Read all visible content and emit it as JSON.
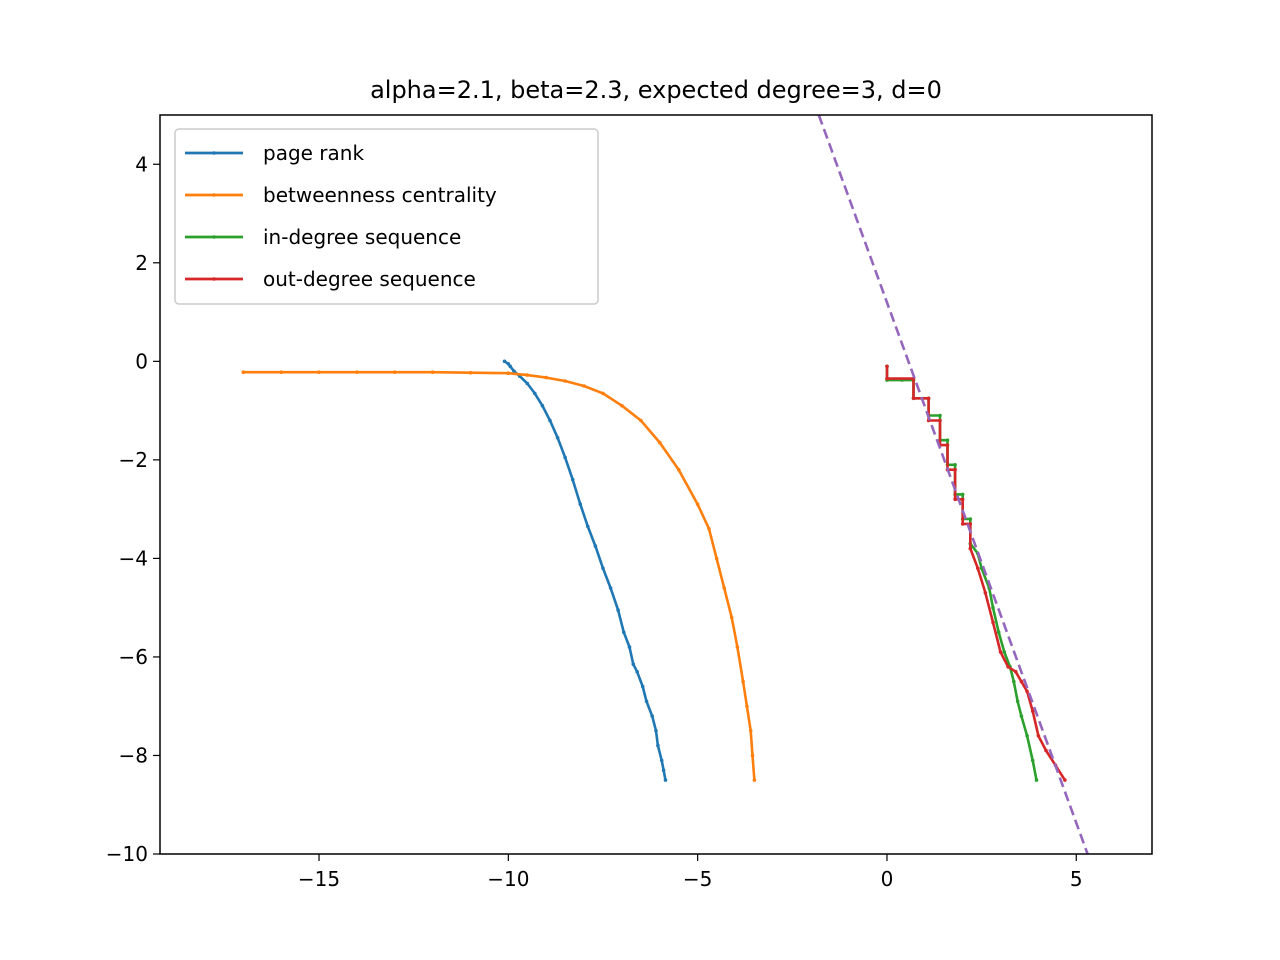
{
  "chart_data": {
    "type": "line",
    "title": "alpha=2.1, beta=2.3, expected degree=3, d=0",
    "xlabel": "",
    "ylabel": "",
    "xlim": [
      -19.2,
      7.0
    ],
    "ylim": [
      -10,
      5
    ],
    "xticks": [
      -15,
      -10,
      -5,
      0,
      5
    ],
    "yticks": [
      4,
      2,
      0,
      -2,
      -4,
      -6,
      -8,
      -10
    ],
    "xtick_labels": [
      "−15",
      "−10",
      "−5",
      "0",
      "5"
    ],
    "ytick_labels": [
      "4",
      "2",
      "0",
      "−2",
      "−4",
      "−6",
      "−8",
      "−10"
    ],
    "grid": false,
    "legend_position": "upper left",
    "series": [
      {
        "name": "page rank",
        "color": "#1f77b4",
        "style": "solid",
        "x": [
          -10.1,
          -10.0,
          -9.95,
          -9.85,
          -9.7,
          -9.5,
          -9.3,
          -9.1,
          -8.9,
          -8.7,
          -8.5,
          -8.3,
          -8.1,
          -7.9,
          -7.7,
          -7.5,
          -7.3,
          -7.1,
          -6.95,
          -6.8,
          -6.7,
          -6.6,
          -6.45,
          -6.35,
          -6.2,
          -6.1,
          -6.05,
          -5.95,
          -5.9,
          -5.85
        ],
        "y": [
          0.0,
          -0.05,
          -0.1,
          -0.2,
          -0.3,
          -0.45,
          -0.65,
          -0.9,
          -1.2,
          -1.55,
          -1.95,
          -2.4,
          -2.9,
          -3.35,
          -3.75,
          -4.2,
          -4.6,
          -5.05,
          -5.5,
          -5.8,
          -6.15,
          -6.3,
          -6.6,
          -6.9,
          -7.2,
          -7.5,
          -7.8,
          -8.1,
          -8.3,
          -8.5
        ]
      },
      {
        "name": "betweenness centrality",
        "color": "#ff7f0e",
        "style": "solid",
        "x": [
          -17.0,
          -16.0,
          -15.0,
          -14.0,
          -13.0,
          -12.0,
          -11.0,
          -10.0,
          -9.5,
          -9.0,
          -8.5,
          -8.0,
          -7.5,
          -7.0,
          -6.5,
          -6.0,
          -5.5,
          -5.0,
          -4.7,
          -4.5,
          -4.3,
          -4.1,
          -3.95,
          -3.8,
          -3.7,
          -3.6,
          -3.55,
          -3.5
        ],
        "y": [
          -0.22,
          -0.22,
          -0.22,
          -0.22,
          -0.22,
          -0.22,
          -0.23,
          -0.24,
          -0.28,
          -0.33,
          -0.4,
          -0.5,
          -0.65,
          -0.9,
          -1.2,
          -1.65,
          -2.2,
          -2.9,
          -3.4,
          -4.0,
          -4.6,
          -5.2,
          -5.8,
          -6.5,
          -7.0,
          -7.5,
          -8.0,
          -8.5
        ]
      },
      {
        "name": "in-degree sequence",
        "color": "#2ca02c",
        "style": "solid",
        "x": [
          0.0,
          0.0,
          0.4,
          0.7,
          0.7,
          1.1,
          1.1,
          1.4,
          1.4,
          1.6,
          1.6,
          1.8,
          1.8,
          2.0,
          2.0,
          2.2,
          2.2,
          2.4,
          2.5,
          2.7,
          2.8,
          2.95,
          3.1,
          3.25,
          3.35,
          3.45,
          3.55,
          3.7,
          3.85,
          3.95
        ],
        "y": [
          -0.1,
          -0.38,
          -0.38,
          -0.38,
          -0.75,
          -0.75,
          -1.1,
          -1.1,
          -1.6,
          -1.6,
          -2.1,
          -2.1,
          -2.7,
          -2.7,
          -3.2,
          -3.2,
          -3.7,
          -3.9,
          -4.2,
          -4.6,
          -5.0,
          -5.5,
          -5.9,
          -6.2,
          -6.5,
          -6.9,
          -7.2,
          -7.6,
          -8.1,
          -8.5
        ]
      },
      {
        "name": "out-degree sequence",
        "color": "#d62728",
        "style": "solid",
        "x": [
          0.0,
          0.0,
          0.7,
          0.7,
          1.1,
          1.1,
          1.4,
          1.4,
          1.6,
          1.6,
          1.8,
          1.8,
          2.0,
          2.0,
          2.2,
          2.2,
          2.4,
          2.6,
          2.8,
          3.0,
          3.2,
          3.4,
          3.55,
          3.7,
          3.85,
          4.0,
          4.2,
          4.45,
          4.7
        ],
        "y": [
          -0.1,
          -0.35,
          -0.35,
          -0.75,
          -0.75,
          -1.2,
          -1.2,
          -1.7,
          -1.7,
          -2.2,
          -2.2,
          -2.8,
          -2.8,
          -3.3,
          -3.3,
          -3.8,
          -4.2,
          -4.7,
          -5.3,
          -5.9,
          -6.2,
          -6.3,
          -6.5,
          -6.7,
          -7.1,
          -7.6,
          -7.9,
          -8.2,
          -8.5
        ]
      },
      {
        "name": "",
        "color": "#9467bd",
        "style": "dashed",
        "x": [
          -1.8,
          5.3
        ],
        "y": [
          5.0,
          -10.0
        ]
      }
    ]
  }
}
